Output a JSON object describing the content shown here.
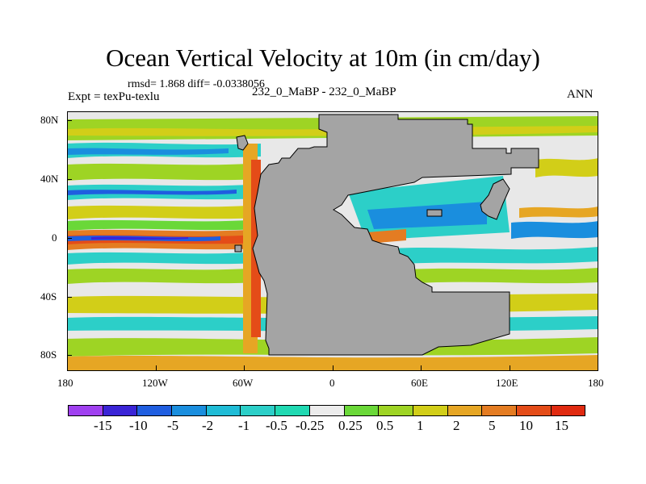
{
  "title": "Ocean Vertical Velocity at 10m (in cm/day)",
  "stats": "rmsd= 1.868  diff= -0.0338056",
  "expt": "Expt = texPu-texlu",
  "subtitle": "232_0_MaBP - 232_0_MaBP",
  "season": "ANN",
  "y_axis": {
    "labels": [
      "80N",
      "40N",
      "0",
      "40S",
      "80S"
    ]
  },
  "x_axis": {
    "labels": [
      "180",
      "120W",
      "60W",
      "0",
      "60E",
      "120E",
      "180"
    ]
  },
  "legend": {
    "labels": [
      "-15",
      "-10",
      "-5",
      "-2",
      "-1",
      "-0.5",
      "-0.25",
      "0.25",
      "0.5",
      "1",
      "2",
      "5",
      "10",
      "15"
    ],
    "colors": [
      "#a040f0",
      "#3a24d6",
      "#1f5ee0",
      "#1a8ede",
      "#1fbcd6",
      "#2ccfc8",
      "#20d9b2",
      "#ececec",
      "#6ad838",
      "#9ed424",
      "#d2ce18",
      "#e6a624",
      "#e47c22",
      "#e44c18",
      "#e02a10"
    ]
  },
  "colors": {
    "land": "#a4a4a4",
    "ocean_base": "#e8e8e8"
  }
}
